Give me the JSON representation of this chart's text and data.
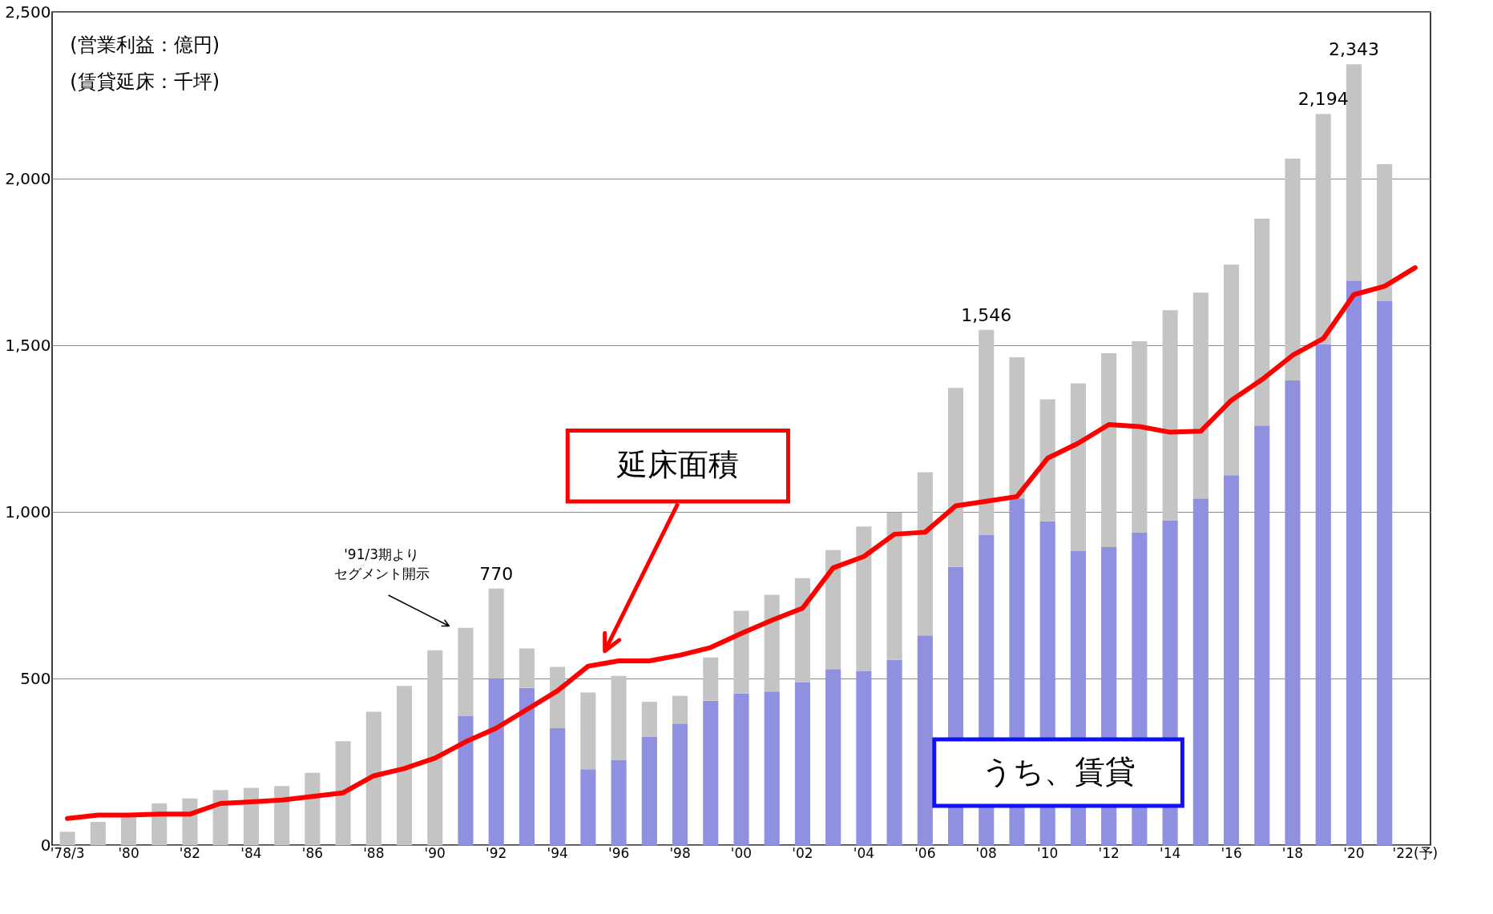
{
  "chart_data": {
    "type": "bar",
    "stacked": true,
    "legend": false,
    "grid": "y",
    "categories": [
      "'78/3",
      null,
      "'80",
      null,
      "'82",
      null,
      "'84",
      null,
      "'86",
      null,
      "'88",
      null,
      "'90",
      null,
      "'92",
      null,
      "'94",
      null,
      "'96",
      null,
      "'98",
      null,
      "'00",
      null,
      "'02",
      null,
      "'04",
      null,
      "'06",
      null,
      "'08",
      null,
      "'10",
      null,
      "'12",
      null,
      "'14",
      null,
      "'16",
      null,
      "'18",
      null,
      "'20",
      null,
      "'22(予)"
    ],
    "ylim": [
      0,
      2500
    ],
    "yticks": [
      0,
      500,
      {
        "value": 1000,
        "label": "1,000"
      },
      {
        "value": 1500,
        "label": "1,500"
      },
      {
        "value": 2000,
        "label": "2,000"
      },
      {
        "value": 2500,
        "label": "2,500"
      }
    ],
    "series": [
      {
        "name": "うち、賃貸",
        "color": "#9090e0",
        "values": [
          null,
          null,
          null,
          null,
          null,
          null,
          null,
          null,
          null,
          null,
          null,
          null,
          null,
          388,
          500,
          472,
          351,
          228,
          256,
          326,
          365,
          433,
          455,
          461,
          489,
          528,
          523,
          556,
          629,
          835,
          930,
          1040,
          972,
          882,
          894,
          939,
          975,
          1040,
          1110,
          1259,
          1394,
          1503,
          1694,
          1632,
          null
        ]
      },
      {
        "color": "#c4c4c4",
        "values": [
          40,
          70,
          85,
          125,
          140,
          165,
          172,
          177,
          217,
          312,
          400,
          478,
          585,
          264,
          270,
          118,
          184,
          230,
          252,
          104,
          83,
          130,
          248,
          290,
          312,
          357,
          433,
          442,
          490,
          537,
          616,
          424,
          366,
          504,
          582,
          573,
          630,
          618,
          632,
          621,
          666,
          691,
          649,
          411,
          null
        ]
      },
      {
        "name": "延床面積",
        "type": "line",
        "color": "#ff0000",
        "values": [
          80,
          90,
          90,
          93,
          93,
          125,
          130,
          135,
          146,
          157,
          208,
          230,
          261,
          310,
          351,
          407,
          463,
          537,
          553,
          553,
          570,
          593,
          635,
          675,
          711,
          832,
          866,
          933,
          939,
          1018,
          1032,
          1046,
          1161,
          1206,
          1262,
          1256,
          1239,
          1242,
          1335,
          1397,
          1470,
          1520,
          1652,
          1677,
          1733
        ]
      }
    ],
    "totals": [
      null,
      null,
      null,
      null,
      null,
      null,
      null,
      null,
      null,
      null,
      null,
      null,
      null,
      null,
      "770",
      null,
      null,
      null,
      null,
      null,
      null,
      null,
      null,
      null,
      null,
      null,
      null,
      null,
      null,
      null,
      "1,546",
      null,
      null,
      null,
      null,
      null,
      null,
      null,
      null,
      null,
      null,
      "2,194",
      "2,343",
      null,
      null
    ],
    "annotations": [
      "(営業利益：億円)",
      "(賃貸延床：千坪)",
      "'91/3期よりセグメント開示"
    ]
  }
}
